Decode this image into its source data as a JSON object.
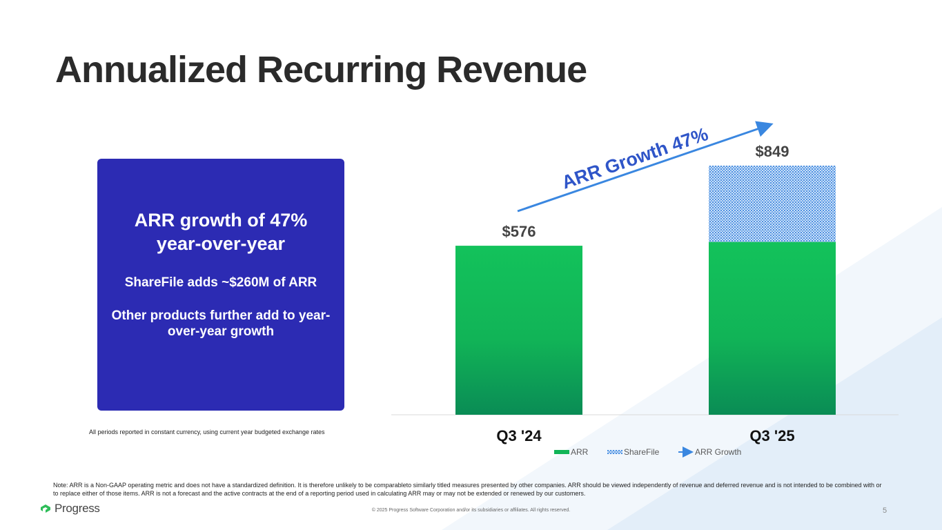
{
  "slide": {
    "title": "Annualized Recurring Revenue",
    "page_number": "5"
  },
  "callout": {
    "headline": "ARR growth of 47% year-over-year",
    "line2": "ShareFile adds ~$260M of ARR",
    "line3": "Other products further add to year-over-year growth"
  },
  "currency_note": "All periods reported in constant currency, using current year budgeted exchange rates",
  "footnote": "Note: ARR is a Non-GAAP operating metric and does not have a standardized definition.  It is therefore unlikely to be comparableto similarly titled measures presented by other companies. ARR should be viewed independently of revenue and deferred revenue and is not intended to be combined with or to replace either of those items. ARR is not a forecast and the active contracts at the end of a reporting period used in calculating ARR may or may not be extended or renewed by our customers.",
  "logo": {
    "text": "Progress",
    "icon": "progress-logo-icon"
  },
  "copyright": "© 2025 Progress Software Corporation and/or its subsidiaries or affiliates. All rights reserved.",
  "colors": {
    "callout_bg": "#2c2bb3",
    "arr_green": "#14c05a",
    "sharefile_blue": "#4a90e2",
    "arrow_blue": "#3a87e0",
    "title": "#2b2b2b"
  },
  "chart_data": {
    "type": "bar",
    "stacked": true,
    "categories": [
      "Q3 '24",
      "Q3 '25"
    ],
    "series": [
      {
        "name": "ARR",
        "values": [
          576,
          589
        ]
      },
      {
        "name": "ShareFile",
        "values": [
          0,
          260
        ]
      }
    ],
    "totals": [
      "$576",
      "$849"
    ],
    "annotation": "ARR Growth 47%",
    "legend": [
      "ARR",
      "ShareFile",
      "ARR Growth"
    ],
    "legend_position": "bottom",
    "grid": false,
    "ylim": [
      0,
      849
    ]
  }
}
